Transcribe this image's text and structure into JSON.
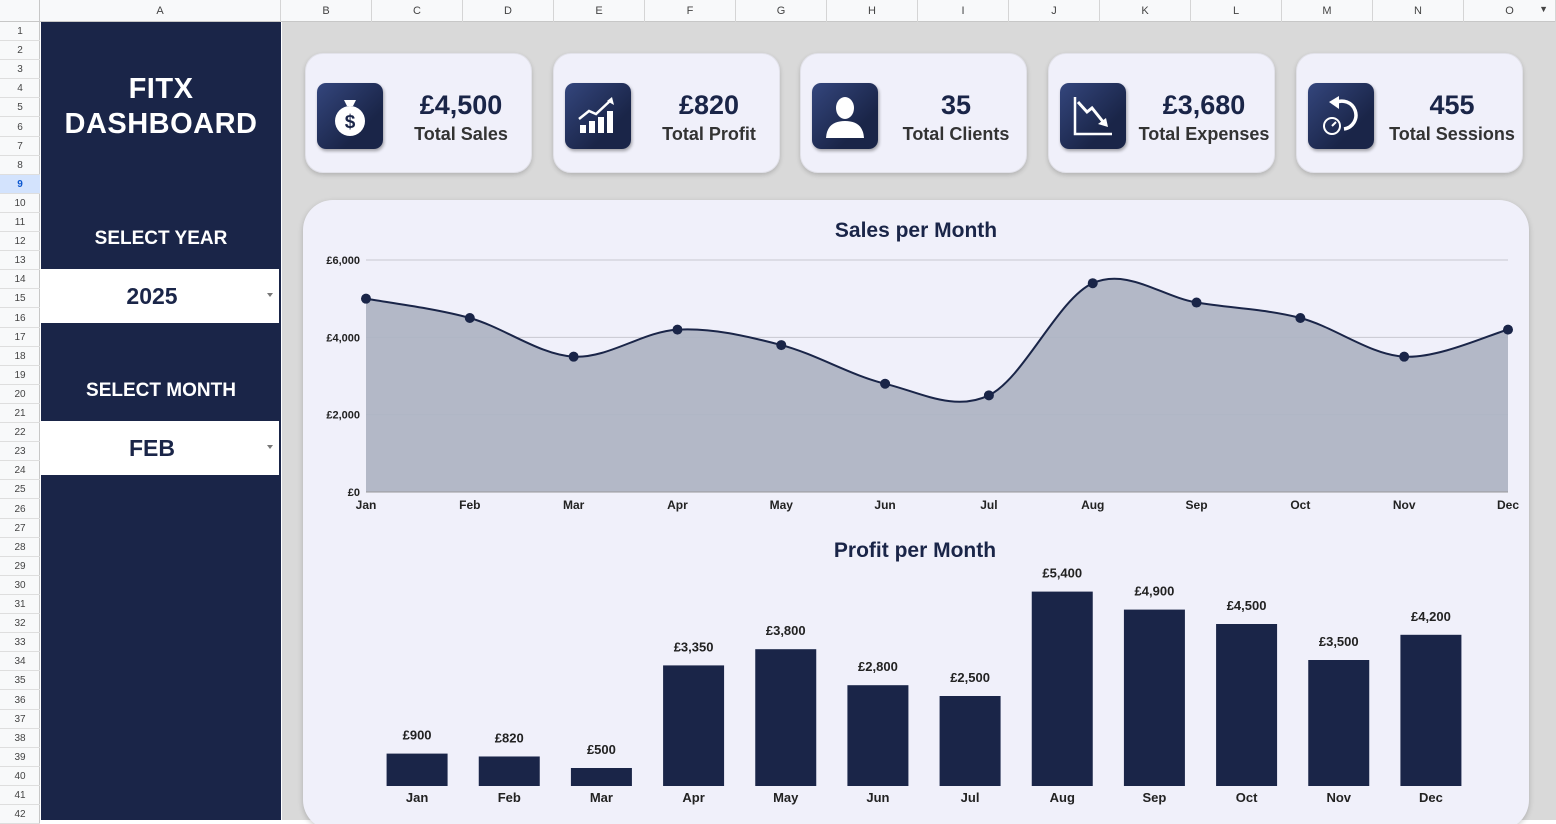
{
  "sheet": {
    "columns": [
      "A",
      "B",
      "C",
      "D",
      "E",
      "F",
      "G",
      "H",
      "I",
      "J",
      "K",
      "L",
      "M",
      "N",
      "O"
    ],
    "rows": [
      "1",
      "2",
      "3",
      "4",
      "5",
      "6",
      "7",
      "8",
      "9",
      "10",
      "11",
      "12",
      "13",
      "14",
      "15",
      "16",
      "17",
      "18",
      "19",
      "20",
      "21",
      "22",
      "23",
      "24",
      "25",
      "26",
      "27",
      "28",
      "29",
      "30",
      "31",
      "32",
      "33",
      "34",
      "35",
      "36",
      "37",
      "38",
      "39",
      "40",
      "41",
      "42"
    ],
    "active_row": "9"
  },
  "sidebar": {
    "title_line1": "FITX",
    "title_line2": "DASHBOARD",
    "year_label": "SELECT YEAR",
    "year_value": "2025",
    "month_label": "SELECT MONTH",
    "month_value": "FEB"
  },
  "kpis": [
    {
      "value": "£4,500",
      "label": "Total Sales",
      "icon": "money-bag-icon"
    },
    {
      "value": "£820",
      "label": "Total Profit",
      "icon": "growth-chart-icon"
    },
    {
      "value": "35",
      "label": "Total Clients",
      "icon": "person-icon"
    },
    {
      "value": "£3,680",
      "label": "Total Expenses",
      "icon": "declining-chart-icon"
    },
    {
      "value": "455",
      "label": "Total Sessions",
      "icon": "session-timer-icon"
    }
  ],
  "colors": {
    "navy": "#1a2548",
    "panel": "#f0f0fa",
    "area_fill": "#afb4c4"
  },
  "chart_data": [
    {
      "type": "area",
      "title": "Sales per Month",
      "categories": [
        "Jan",
        "Feb",
        "Mar",
        "Apr",
        "May",
        "Jun",
        "Jul",
        "Aug",
        "Sep",
        "Oct",
        "Nov",
        "Dec"
      ],
      "values": [
        5000,
        4500,
        3500,
        4200,
        3800,
        2800,
        2500,
        5400,
        4900,
        4500,
        3500,
        4200
      ],
      "ylim": [
        0,
        6000
      ],
      "yticks": [
        0,
        2000,
        4000,
        6000
      ],
      "ytick_labels": [
        "£0",
        "£2,000",
        "£4,000",
        "£6,000"
      ],
      "xlabel": "",
      "ylabel": "",
      "grid": true
    },
    {
      "type": "bar",
      "title": "Profit per Month",
      "categories": [
        "Jan",
        "Feb",
        "Mar",
        "Apr",
        "May",
        "Jun",
        "Jul",
        "Aug",
        "Sep",
        "Oct",
        "Nov",
        "Dec"
      ],
      "values": [
        900,
        820,
        500,
        3350,
        3800,
        2800,
        2500,
        5400,
        4900,
        4500,
        3500,
        4200
      ],
      "data_labels": [
        "£900",
        "£820",
        "£500",
        "£3,350",
        "£3,800",
        "£2,800",
        "£2,500",
        "£5,400",
        "£4,900",
        "£4,500",
        "£3,500",
        "£4,200"
      ],
      "ylim": [
        0,
        6000
      ],
      "xlabel": "",
      "ylabel": ""
    }
  ]
}
